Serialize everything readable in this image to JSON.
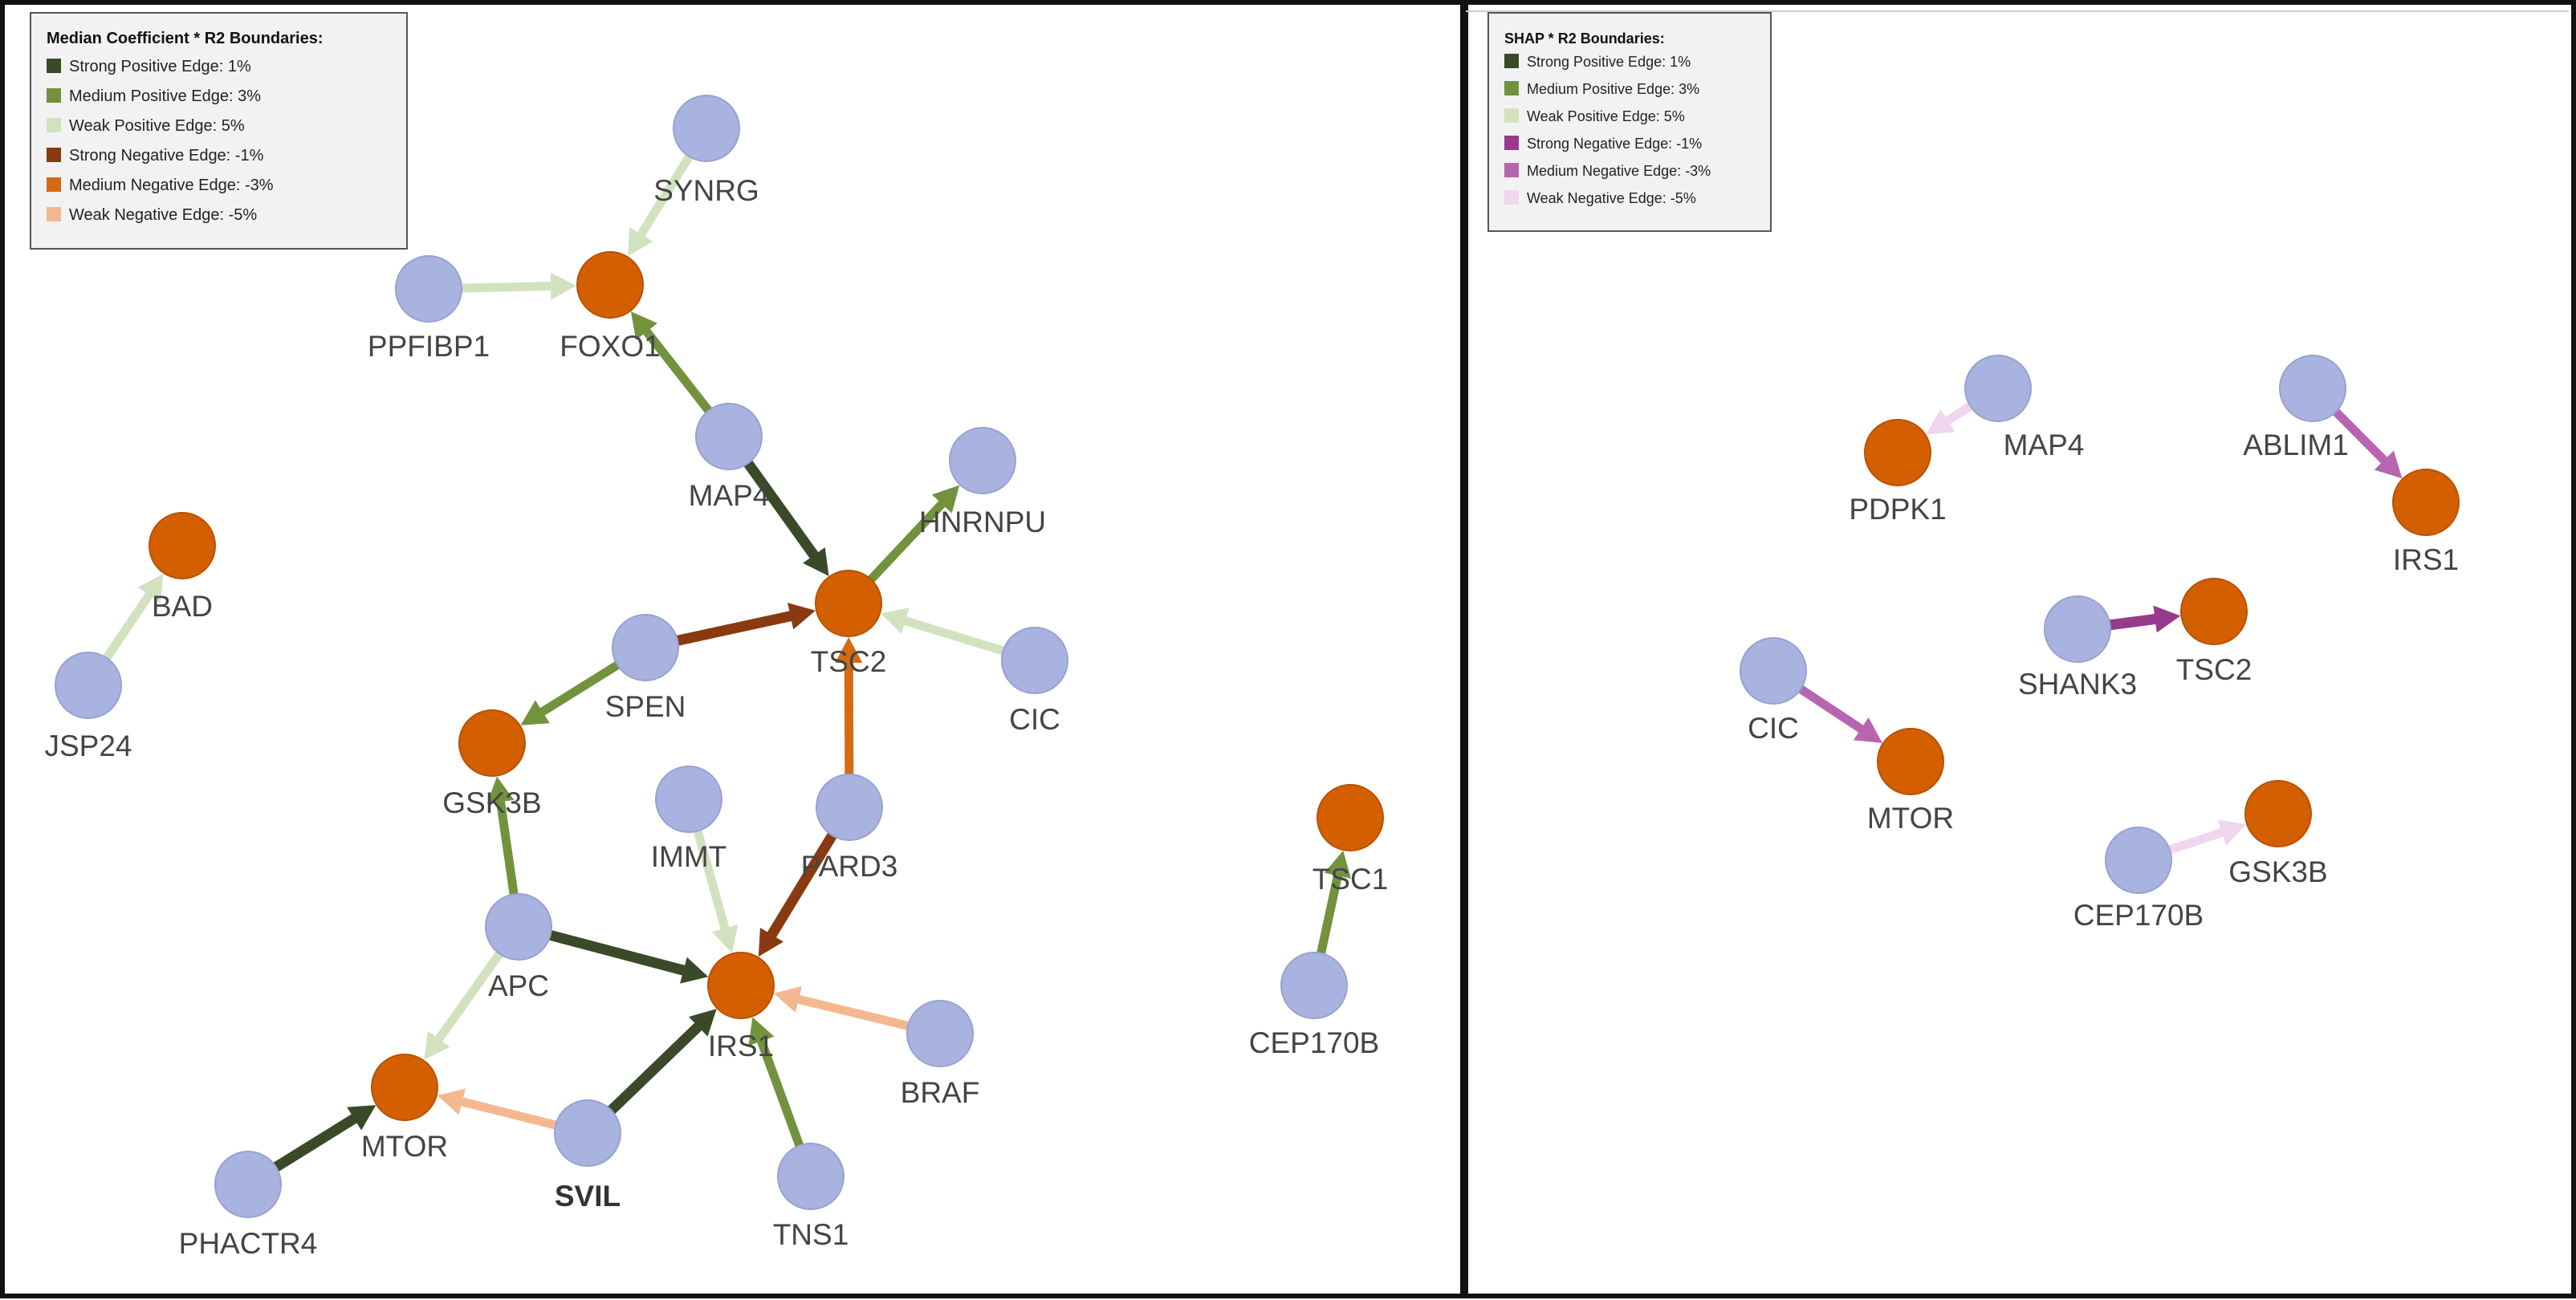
{
  "colors": {
    "source_node": "#a8b3e0",
    "source_node_stroke": "#97a2d2",
    "target_node": "#d45f00",
    "target_node_stroke": "#b85200",
    "strong_positive": "#3a4a28",
    "medium_positive": "#72923e",
    "weak_positive": "#d2e2bf",
    "left_strong_negative": "#8a3a10",
    "left_medium_negative": "#d66a12",
    "left_weak_negative": "#f4b890",
    "right_strong_negative": "#963a8c",
    "right_medium_negative": "#b865b0",
    "right_weak_negative": "#f0d6ef",
    "frame": "#111111",
    "legend_bg": "#f2f2f2",
    "legend_border": "#555555"
  },
  "panels": [
    {
      "id": "left",
      "legend": {
        "title": "Median Coefficient * R2 Boundaries:",
        "items": [
          {
            "label": "Strong Positive Edge: 1%",
            "color": "#3a4a28"
          },
          {
            "label": "Medium Positive Edge: 3%",
            "color": "#72923e"
          },
          {
            "label": "Weak Positive Edge: 5%",
            "color": "#d2e2bf"
          },
          {
            "label": "Strong Negative Edge: -1%",
            "color": "#8a3a10"
          },
          {
            "label": "Medium Negative Edge: -3%",
            "color": "#d66a12"
          },
          {
            "label": "Weak Negative Edge: -5%",
            "color": "#f4b890"
          }
        ]
      },
      "nodes": [
        {
          "id": "SYNRG",
          "label": "SYNRG",
          "kind": "source"
        },
        {
          "id": "PPFIBP1",
          "label": "PPFIBP1",
          "kind": "source"
        },
        {
          "id": "FOXO1",
          "label": "FOXO1",
          "kind": "target"
        },
        {
          "id": "MAP4",
          "label": "MAP4",
          "kind": "source"
        },
        {
          "id": "HNRNPU",
          "label": "HNRNPU",
          "kind": "source"
        },
        {
          "id": "TSC2",
          "label": "TSC2",
          "kind": "target"
        },
        {
          "id": "SPEN",
          "label": "SPEN",
          "kind": "source"
        },
        {
          "id": "CIC",
          "label": "CIC",
          "kind": "source"
        },
        {
          "id": "GSK3B",
          "label": "GSK3B",
          "kind": "target"
        },
        {
          "id": "BAD",
          "label": "BAD",
          "kind": "target"
        },
        {
          "id": "JSP24",
          "label": "JSP24",
          "kind": "source"
        },
        {
          "id": "IMMT",
          "label": "IMMT",
          "kind": "source"
        },
        {
          "id": "PARD3",
          "label": "PARD3",
          "kind": "source"
        },
        {
          "id": "APC",
          "label": "APC",
          "kind": "source"
        },
        {
          "id": "IRS1",
          "label": "IRS1",
          "kind": "target"
        },
        {
          "id": "BRAF",
          "label": "BRAF",
          "kind": "source"
        },
        {
          "id": "MTOR",
          "label": "MTOR",
          "kind": "target"
        },
        {
          "id": "SVIL",
          "label": "SVIL",
          "kind": "source",
          "bold": true
        },
        {
          "id": "PHACTR4",
          "label": "PHACTR4",
          "kind": "source"
        },
        {
          "id": "TNS1",
          "label": "TNS1",
          "kind": "source"
        },
        {
          "id": "TSC1",
          "label": "TSC1",
          "kind": "target"
        },
        {
          "id": "CEP170B",
          "label": "CEP170B",
          "kind": "source"
        }
      ],
      "edges": [
        {
          "from": "SYNRG",
          "to": "FOXO1",
          "strength": "weak_positive"
        },
        {
          "from": "PPFIBP1",
          "to": "FOXO1",
          "strength": "weak_positive"
        },
        {
          "from": "MAP4",
          "to": "FOXO1",
          "strength": "medium_positive"
        },
        {
          "from": "MAP4",
          "to": "TSC2",
          "strength": "strong_positive"
        },
        {
          "from": "TSC2",
          "to": "HNRNPU",
          "strength": "medium_positive"
        },
        {
          "from": "CIC",
          "to": "TSC2",
          "strength": "weak_positive"
        },
        {
          "from": "SPEN",
          "to": "TSC2",
          "strength": "strong_negative"
        },
        {
          "from": "SPEN",
          "to": "GSK3B",
          "strength": "medium_positive"
        },
        {
          "from": "PARD3",
          "to": "TSC2",
          "strength": "medium_negative"
        },
        {
          "from": "JSP24",
          "to": "BAD",
          "strength": "weak_positive"
        },
        {
          "from": "APC",
          "to": "GSK3B",
          "strength": "medium_positive"
        },
        {
          "from": "APC",
          "to": "IRS1",
          "strength": "strong_positive"
        },
        {
          "from": "IMMT",
          "to": "IRS1",
          "strength": "weak_positive"
        },
        {
          "from": "PARD3",
          "to": "IRS1",
          "strength": "strong_negative"
        },
        {
          "from": "BRAF",
          "to": "IRS1",
          "strength": "weak_negative"
        },
        {
          "from": "SVIL",
          "to": "IRS1",
          "strength": "strong_positive"
        },
        {
          "from": "TNS1",
          "to": "IRS1",
          "strength": "medium_positive"
        },
        {
          "from": "APC",
          "to": "MTOR",
          "strength": "weak_positive"
        },
        {
          "from": "SVIL",
          "to": "MTOR",
          "strength": "weak_negative"
        },
        {
          "from": "PHACTR4",
          "to": "MTOR",
          "strength": "strong_positive"
        },
        {
          "from": "CEP170B",
          "to": "TSC1",
          "strength": "medium_positive"
        }
      ]
    },
    {
      "id": "right",
      "legend": {
        "title": "SHAP * R2 Boundaries:",
        "items": [
          {
            "label": "Strong Positive Edge: 1%",
            "color": "#3a4a28"
          },
          {
            "label": "Medium Positive Edge: 3%",
            "color": "#72923e"
          },
          {
            "label": "Weak Positive Edge: 5%",
            "color": "#d2e2bf"
          },
          {
            "label": "Strong Negative Edge: -1%",
            "color": "#963a8c"
          },
          {
            "label": "Medium Negative Edge: -3%",
            "color": "#b865b0"
          },
          {
            "label": "Weak Negative Edge: -5%",
            "color": "#f0d6ef"
          }
        ]
      },
      "nodes": [
        {
          "id": "MAP4",
          "label": "MAP4",
          "kind": "source"
        },
        {
          "id": "PDPK1",
          "label": "PDPK1",
          "kind": "target"
        },
        {
          "id": "ABLIM1",
          "label": "ABLIM1",
          "kind": "source"
        },
        {
          "id": "IRS1",
          "label": "IRS1",
          "kind": "target"
        },
        {
          "id": "SHANK3",
          "label": "SHANK3",
          "kind": "source"
        },
        {
          "id": "TSC2",
          "label": "TSC2",
          "kind": "target"
        },
        {
          "id": "CIC",
          "label": "CIC",
          "kind": "source"
        },
        {
          "id": "MTOR",
          "label": "MTOR",
          "kind": "target"
        },
        {
          "id": "CEP170B",
          "label": "CEP170B",
          "kind": "source"
        },
        {
          "id": "GSK3B",
          "label": "GSK3B",
          "kind": "target"
        }
      ],
      "edges": [
        {
          "from": "MAP4",
          "to": "PDPK1",
          "strength": "weak_negative"
        },
        {
          "from": "ABLIM1",
          "to": "IRS1",
          "strength": "medium_negative"
        },
        {
          "from": "SHANK3",
          "to": "TSC2",
          "strength": "strong_negative"
        },
        {
          "from": "CIC",
          "to": "MTOR",
          "strength": "medium_negative"
        },
        {
          "from": "CEP170B",
          "to": "GSK3B",
          "strength": "weak_negative"
        }
      ]
    }
  ]
}
